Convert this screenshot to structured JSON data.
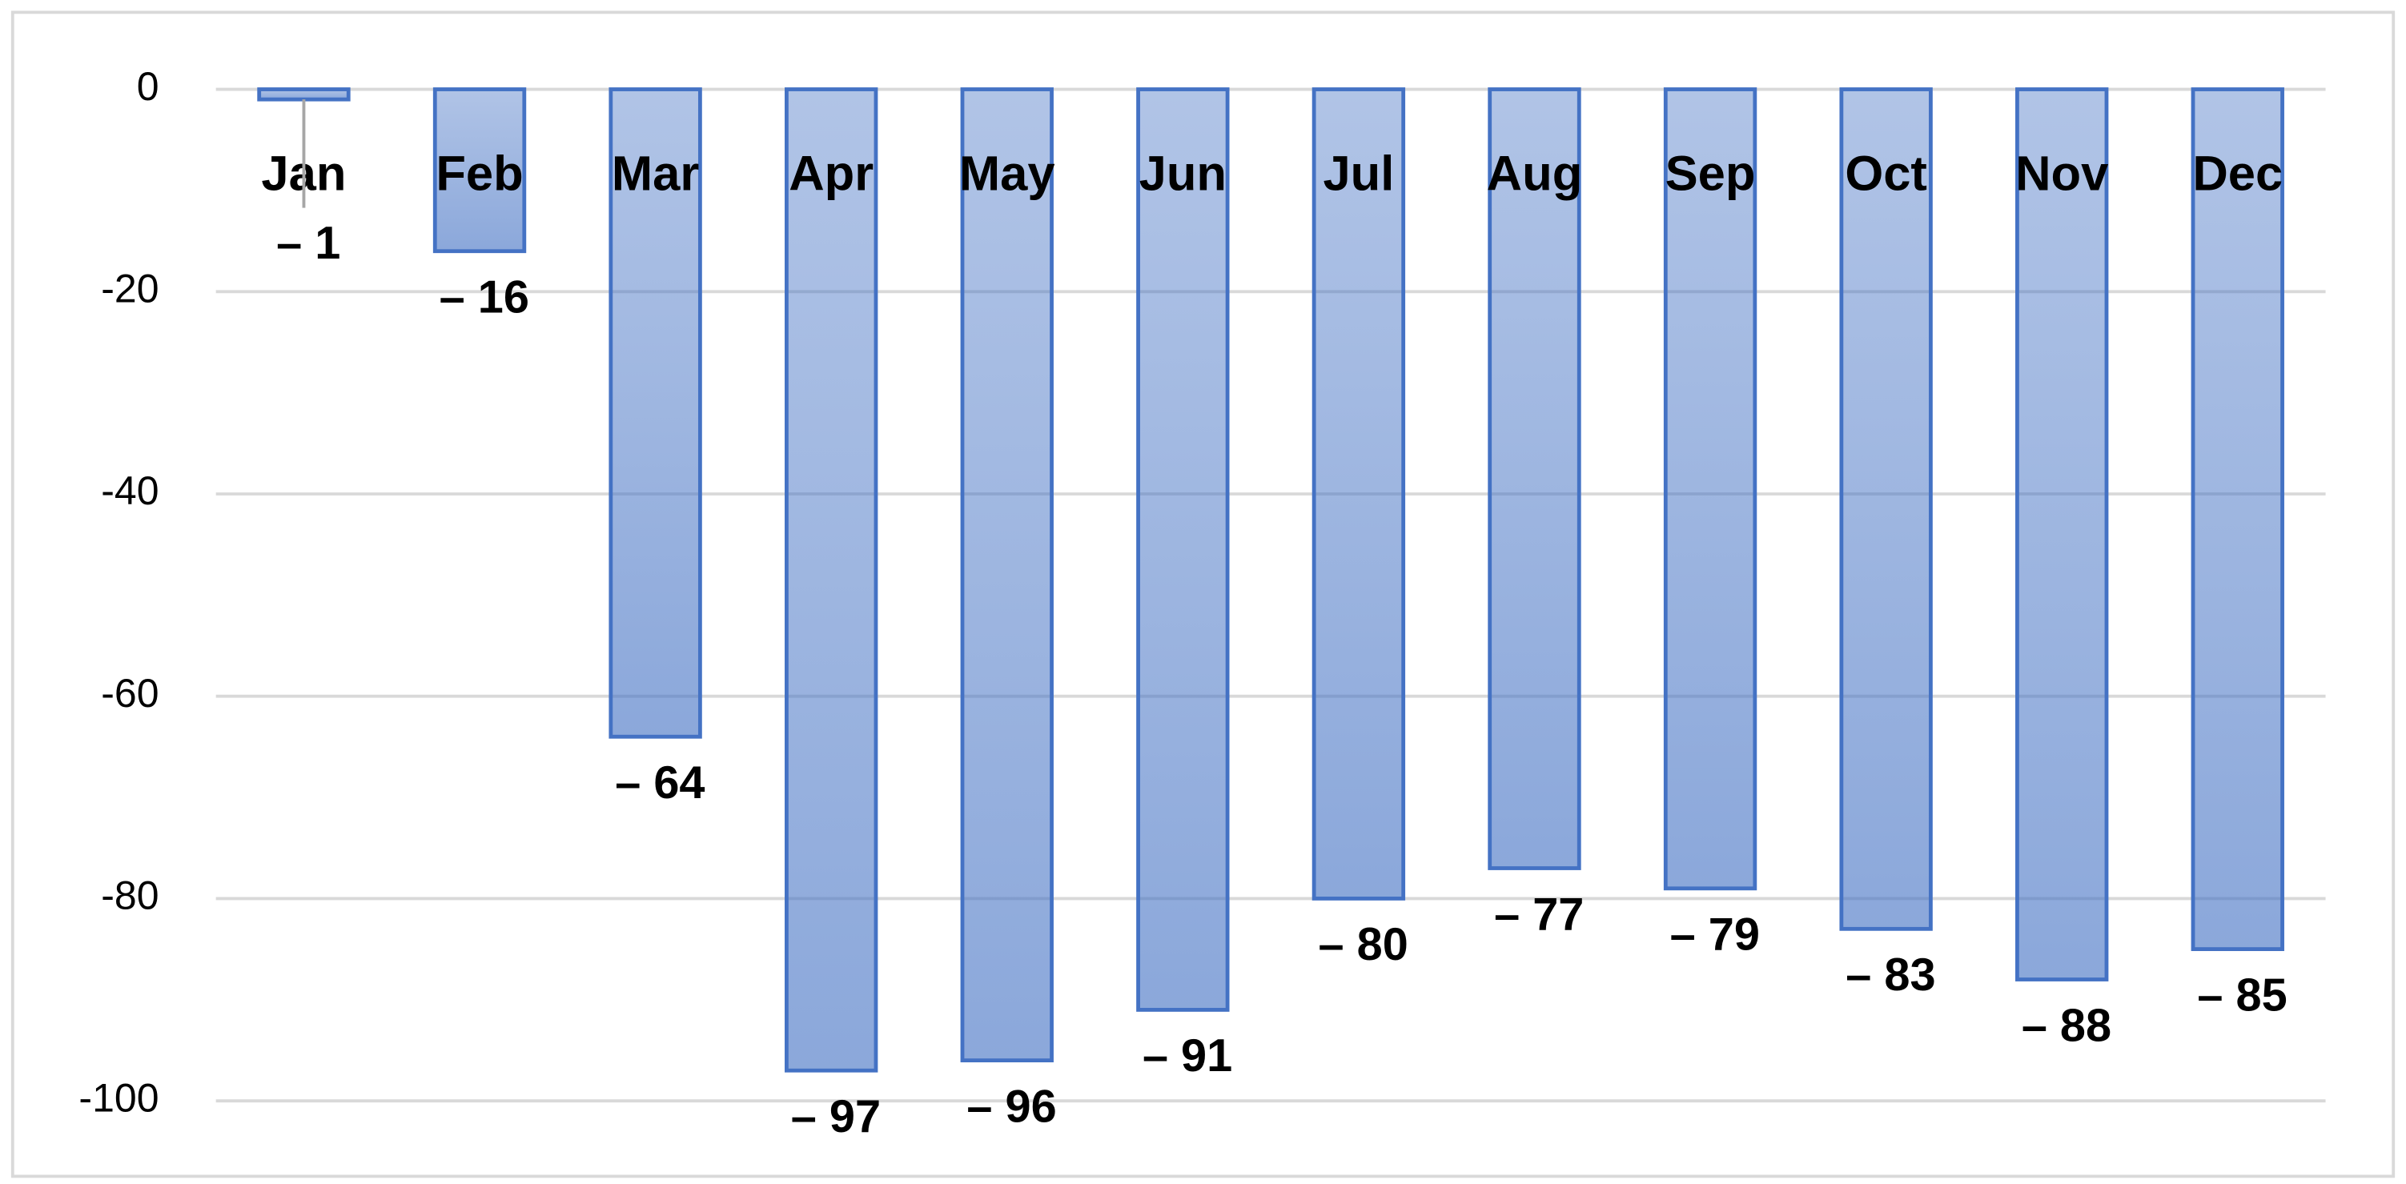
{
  "chart_data": {
    "type": "bar",
    "categories": [
      "Jan",
      "Feb",
      "Mar",
      "Apr",
      "May",
      "Jun",
      "Jul",
      "Aug",
      "Sep",
      "Oct",
      "Nov",
      "Dec"
    ],
    "values": [
      -1,
      -16,
      -64,
      -97,
      -96,
      -91,
      -80,
      -77,
      -79,
      -83,
      -88,
      -85
    ],
    "value_labels": [
      "– 1",
      "– 16",
      "– 64",
      "– 97",
      "– 96",
      "– 91",
      "– 80",
      "– 77",
      "– 79",
      "– 83",
      "– 88",
      "– 85"
    ],
    "color": "#4472c4",
    "ylim": [
      -100,
      0
    ],
    "yticks": [
      0,
      -20,
      -40,
      -60,
      -80,
      -100
    ],
    "grid": true
  }
}
